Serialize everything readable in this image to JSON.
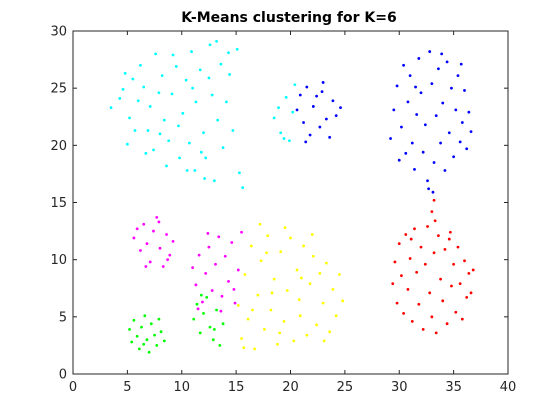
{
  "chart_data": {
    "type": "scatter",
    "title": "K-Means clustering for K=6",
    "xlabel": "",
    "ylabel": "",
    "xlim": [
      0,
      40
    ],
    "ylim": [
      0,
      30
    ],
    "xticks": [
      0,
      5,
      10,
      15,
      20,
      25,
      30,
      35,
      40
    ],
    "yticks": [
      0,
      5,
      10,
      15,
      20,
      25,
      30
    ],
    "grid": false,
    "legend": "none",
    "series": [
      {
        "color": "#00ffff",
        "points": [
          [
            3.5,
            23.3
          ],
          [
            4.3,
            24.1
          ],
          [
            4.8,
            26.3
          ],
          [
            5.2,
            22.4
          ],
          [
            5.0,
            20.1
          ],
          [
            6.2,
            27.0
          ],
          [
            6.5,
            25.1
          ],
          [
            6.9,
            21.3
          ],
          [
            7.1,
            23.4
          ],
          [
            7.6,
            28.0
          ],
          [
            7.4,
            19.6
          ],
          [
            8.2,
            26.1
          ],
          [
            8.4,
            22.2
          ],
          [
            8.8,
            20.4
          ],
          [
            9.1,
            24.5
          ],
          [
            9.2,
            27.9
          ],
          [
            9.8,
            18.9
          ],
          [
            10.1,
            22.8
          ],
          [
            10.4,
            25.7
          ],
          [
            10.7,
            20.2
          ],
          [
            10.9,
            28.2
          ],
          [
            11.2,
            17.8
          ],
          [
            11.3,
            23.8
          ],
          [
            11.7,
            26.6
          ],
          [
            12.0,
            21.1
          ],
          [
            12.2,
            18.9
          ],
          [
            12.6,
            28.8
          ],
          [
            12.8,
            24.4
          ],
          [
            13.0,
            16.9
          ],
          [
            13.3,
            22.2
          ],
          [
            13.6,
            27.1
          ],
          [
            13.8,
            19.8
          ],
          [
            14.1,
            23.8
          ],
          [
            14.4,
            26.2
          ],
          [
            14.7,
            21.3
          ],
          [
            15.1,
            28.4
          ],
          [
            15.3,
            17.6
          ],
          [
            15.6,
            16.3
          ],
          [
            4.6,
            24.9
          ],
          [
            5.7,
            21.3
          ],
          [
            6.0,
            23.9
          ],
          [
            6.7,
            19.3
          ],
          [
            7.9,
            24.6
          ],
          [
            8.0,
            21.0
          ],
          [
            9.5,
            26.9
          ],
          [
            9.7,
            21.7
          ],
          [
            10.5,
            17.8
          ],
          [
            11.0,
            25.0
          ],
          [
            11.8,
            19.4
          ],
          [
            12.5,
            25.9
          ],
          [
            13.2,
            29.1
          ],
          [
            14.3,
            28.1
          ],
          [
            5.5,
            25.8
          ],
          [
            8.6,
            18.2
          ],
          [
            12.1,
            17.1
          ]
        ]
      },
      {
        "color": "#00ffff",
        "points": [
          [
            18.5,
            22.4
          ],
          [
            19.1,
            21.1
          ],
          [
            19.6,
            24.2
          ],
          [
            19.9,
            20.4
          ],
          [
            20.2,
            22.9
          ],
          [
            20.4,
            25.3
          ],
          [
            18.9,
            23.3
          ],
          [
            19.4,
            20.6
          ]
        ]
      },
      {
        "color": "#0000ff",
        "points": [
          [
            20.6,
            23.1
          ],
          [
            20.9,
            24.4
          ],
          [
            21.2,
            22.0
          ],
          [
            21.5,
            25.1
          ],
          [
            21.8,
            20.9
          ],
          [
            22.1,
            23.4
          ],
          [
            22.4,
            24.3
          ],
          [
            22.7,
            21.6
          ],
          [
            23.0,
            25.5
          ],
          [
            23.3,
            22.3
          ],
          [
            23.6,
            20.7
          ],
          [
            23.9,
            23.9
          ],
          [
            24.2,
            22.6
          ],
          [
            24.6,
            23.3
          ],
          [
            21.4,
            20.3
          ],
          [
            22.9,
            24.7
          ]
        ]
      },
      {
        "color": "#0000ff",
        "points": [
          [
            29.2,
            20.6
          ],
          [
            29.5,
            23.1
          ],
          [
            29.8,
            25.2
          ],
          [
            30.0,
            18.7
          ],
          [
            30.2,
            21.6
          ],
          [
            30.4,
            27.0
          ],
          [
            30.6,
            19.3
          ],
          [
            30.8,
            23.8
          ],
          [
            31.0,
            26.1
          ],
          [
            31.2,
            20.2
          ],
          [
            31.4,
            17.9
          ],
          [
            31.6,
            22.7
          ],
          [
            31.8,
            27.6
          ],
          [
            32.0,
            24.6
          ],
          [
            32.2,
            19.4
          ],
          [
            32.4,
            21.8
          ],
          [
            32.6,
            16.9
          ],
          [
            32.8,
            28.2
          ],
          [
            33.0,
            25.4
          ],
          [
            33.2,
            18.5
          ],
          [
            33.4,
            22.6
          ],
          [
            33.6,
            26.7
          ],
          [
            33.8,
            20.2
          ],
          [
            34.0,
            23.7
          ],
          [
            34.2,
            17.8
          ],
          [
            34.4,
            27.3
          ],
          [
            34.6,
            21.1
          ],
          [
            34.8,
            25.0
          ],
          [
            35.0,
            19.0
          ],
          [
            35.2,
            23.1
          ],
          [
            35.4,
            26.1
          ],
          [
            35.6,
            20.3
          ],
          [
            35.8,
            22.0
          ],
          [
            36.0,
            24.8
          ],
          [
            36.2,
            19.7
          ],
          [
            36.4,
            22.9
          ],
          [
            36.6,
            21.2
          ],
          [
            32.7,
            16.2
          ],
          [
            33.1,
            15.9
          ],
          [
            31.5,
            25.1
          ],
          [
            33.9,
            28.0
          ],
          [
            35.7,
            27.1
          ]
        ]
      },
      {
        "color": "#ff0000",
        "points": [
          [
            33.2,
            15.2
          ],
          [
            33.0,
            14.2
          ],
          [
            33.3,
            13.4
          ],
          [
            29.4,
            7.9
          ],
          [
            29.6,
            9.8
          ],
          [
            29.8,
            6.2
          ],
          [
            30.0,
            11.4
          ],
          [
            30.2,
            8.6
          ],
          [
            30.4,
            5.3
          ],
          [
            30.6,
            12.2
          ],
          [
            30.8,
            7.4
          ],
          [
            31.0,
            10.1
          ],
          [
            31.2,
            4.6
          ],
          [
            31.4,
            12.7
          ],
          [
            31.6,
            8.9
          ],
          [
            31.8,
            6.1
          ],
          [
            32.0,
            11.1
          ],
          [
            32.2,
            3.9
          ],
          [
            32.4,
            9.6
          ],
          [
            32.6,
            12.9
          ],
          [
            32.8,
            7.1
          ],
          [
            33.0,
            5.0
          ],
          [
            33.2,
            10.6
          ],
          [
            33.4,
            3.6
          ],
          [
            33.6,
            12.1
          ],
          [
            33.8,
            8.3
          ],
          [
            34.0,
            6.4
          ],
          [
            34.2,
            10.9
          ],
          [
            34.4,
            4.4
          ],
          [
            34.6,
            11.8
          ],
          [
            34.8,
            7.7
          ],
          [
            35.0,
            9.6
          ],
          [
            35.2,
            5.4
          ],
          [
            35.4,
            11.1
          ],
          [
            35.6,
            7.9
          ],
          [
            35.8,
            4.8
          ],
          [
            36.0,
            9.9
          ],
          [
            36.2,
            6.7
          ],
          [
            36.4,
            8.8
          ],
          [
            36.6,
            7.1
          ],
          [
            36.8,
            9.1
          ],
          [
            31.1,
            11.8
          ],
          [
            34.7,
            12.4
          ]
        ]
      },
      {
        "color": "#ff00ff",
        "points": [
          [
            5.6,
            11.9
          ],
          [
            5.9,
            12.7
          ],
          [
            6.2,
            10.8
          ],
          [
            6.5,
            13.1
          ],
          [
            6.8,
            11.4
          ],
          [
            7.1,
            9.8
          ],
          [
            7.4,
            12.5
          ],
          [
            7.7,
            13.7
          ],
          [
            8.0,
            11.0
          ],
          [
            8.3,
            9.4
          ],
          [
            8.6,
            12.2
          ],
          [
            8.9,
            10.4
          ],
          [
            9.2,
            11.6
          ],
          [
            6.7,
            9.4
          ],
          [
            7.9,
            13.3
          ],
          [
            8.7,
            10.0
          ],
          [
            11.0,
            9.3
          ],
          [
            11.3,
            7.8
          ],
          [
            11.6,
            10.4
          ],
          [
            11.9,
            6.3
          ],
          [
            12.2,
            8.8
          ],
          [
            12.5,
            11.1
          ],
          [
            12.8,
            7.3
          ],
          [
            13.1,
            9.6
          ],
          [
            13.4,
            12.0
          ],
          [
            13.7,
            6.8
          ],
          [
            14.0,
            10.3
          ],
          [
            14.3,
            8.1
          ],
          [
            14.6,
            11.5
          ],
          [
            14.9,
            6.2
          ],
          [
            15.2,
            9.1
          ],
          [
            15.5,
            12.4
          ],
          [
            11.5,
            5.7
          ],
          [
            12.4,
            12.3
          ],
          [
            13.6,
            5.5
          ],
          [
            14.8,
            7.4
          ]
        ]
      },
      {
        "color": "#00ff00",
        "points": [
          [
            5.2,
            3.9
          ],
          [
            5.4,
            2.8
          ],
          [
            5.6,
            4.7
          ],
          [
            5.9,
            3.3
          ],
          [
            6.1,
            2.2
          ],
          [
            6.3,
            4.1
          ],
          [
            6.6,
            5.1
          ],
          [
            6.8,
            3.0
          ],
          [
            7.0,
            1.9
          ],
          [
            7.2,
            4.4
          ],
          [
            7.5,
            3.4
          ],
          [
            7.7,
            2.5
          ],
          [
            7.9,
            4.8
          ],
          [
            8.1,
            3.7
          ],
          [
            8.4,
            2.9
          ],
          [
            6.5,
            2.6
          ],
          [
            11.1,
            4.8
          ],
          [
            11.4,
            6.1
          ],
          [
            11.7,
            3.6
          ],
          [
            12.0,
            5.3
          ],
          [
            12.3,
            6.7
          ],
          [
            12.6,
            4.1
          ],
          [
            12.9,
            3.0
          ],
          [
            13.2,
            5.6
          ],
          [
            13.5,
            2.5
          ],
          [
            13.8,
            4.4
          ],
          [
            11.8,
            6.9
          ],
          [
            13.0,
            3.9
          ]
        ]
      },
      {
        "color": "#ffff00",
        "points": [
          [
            15.2,
            6.0
          ],
          [
            15.5,
            3.1
          ],
          [
            15.8,
            8.7
          ],
          [
            16.1,
            4.8
          ],
          [
            16.4,
            11.2
          ],
          [
            16.7,
            2.2
          ],
          [
            17.0,
            6.9
          ],
          [
            17.3,
            9.9
          ],
          [
            17.6,
            3.9
          ],
          [
            17.9,
            12.1
          ],
          [
            18.2,
            5.6
          ],
          [
            18.5,
            8.3
          ],
          [
            18.8,
            2.6
          ],
          [
            19.1,
            10.7
          ],
          [
            19.4,
            4.6
          ],
          [
            19.7,
            7.3
          ],
          [
            20.0,
            11.9
          ],
          [
            20.3,
            2.9
          ],
          [
            20.6,
            9.1
          ],
          [
            20.9,
            5.1
          ],
          [
            21.2,
            11.2
          ],
          [
            21.5,
            3.4
          ],
          [
            21.8,
            7.9
          ],
          [
            22.1,
            10.3
          ],
          [
            22.4,
            4.3
          ],
          [
            22.7,
            8.8
          ],
          [
            23.0,
            6.2
          ],
          [
            23.3,
            9.7
          ],
          [
            23.6,
            3.7
          ],
          [
            23.9,
            7.4
          ],
          [
            24.2,
            5.1
          ],
          [
            24.5,
            8.7
          ],
          [
            15.7,
            2.3
          ],
          [
            17.2,
            13.1
          ],
          [
            19.5,
            12.8
          ],
          [
            22.0,
            12.2
          ],
          [
            24.8,
            6.4
          ],
          [
            16.5,
            5.6
          ],
          [
            18.3,
            7.1
          ],
          [
            20.8,
            6.5
          ],
          [
            23.1,
            2.9
          ],
          [
            17.8,
            10.6
          ],
          [
            21.0,
            8.4
          ],
          [
            19.0,
            3.6
          ]
        ]
      }
    ]
  }
}
